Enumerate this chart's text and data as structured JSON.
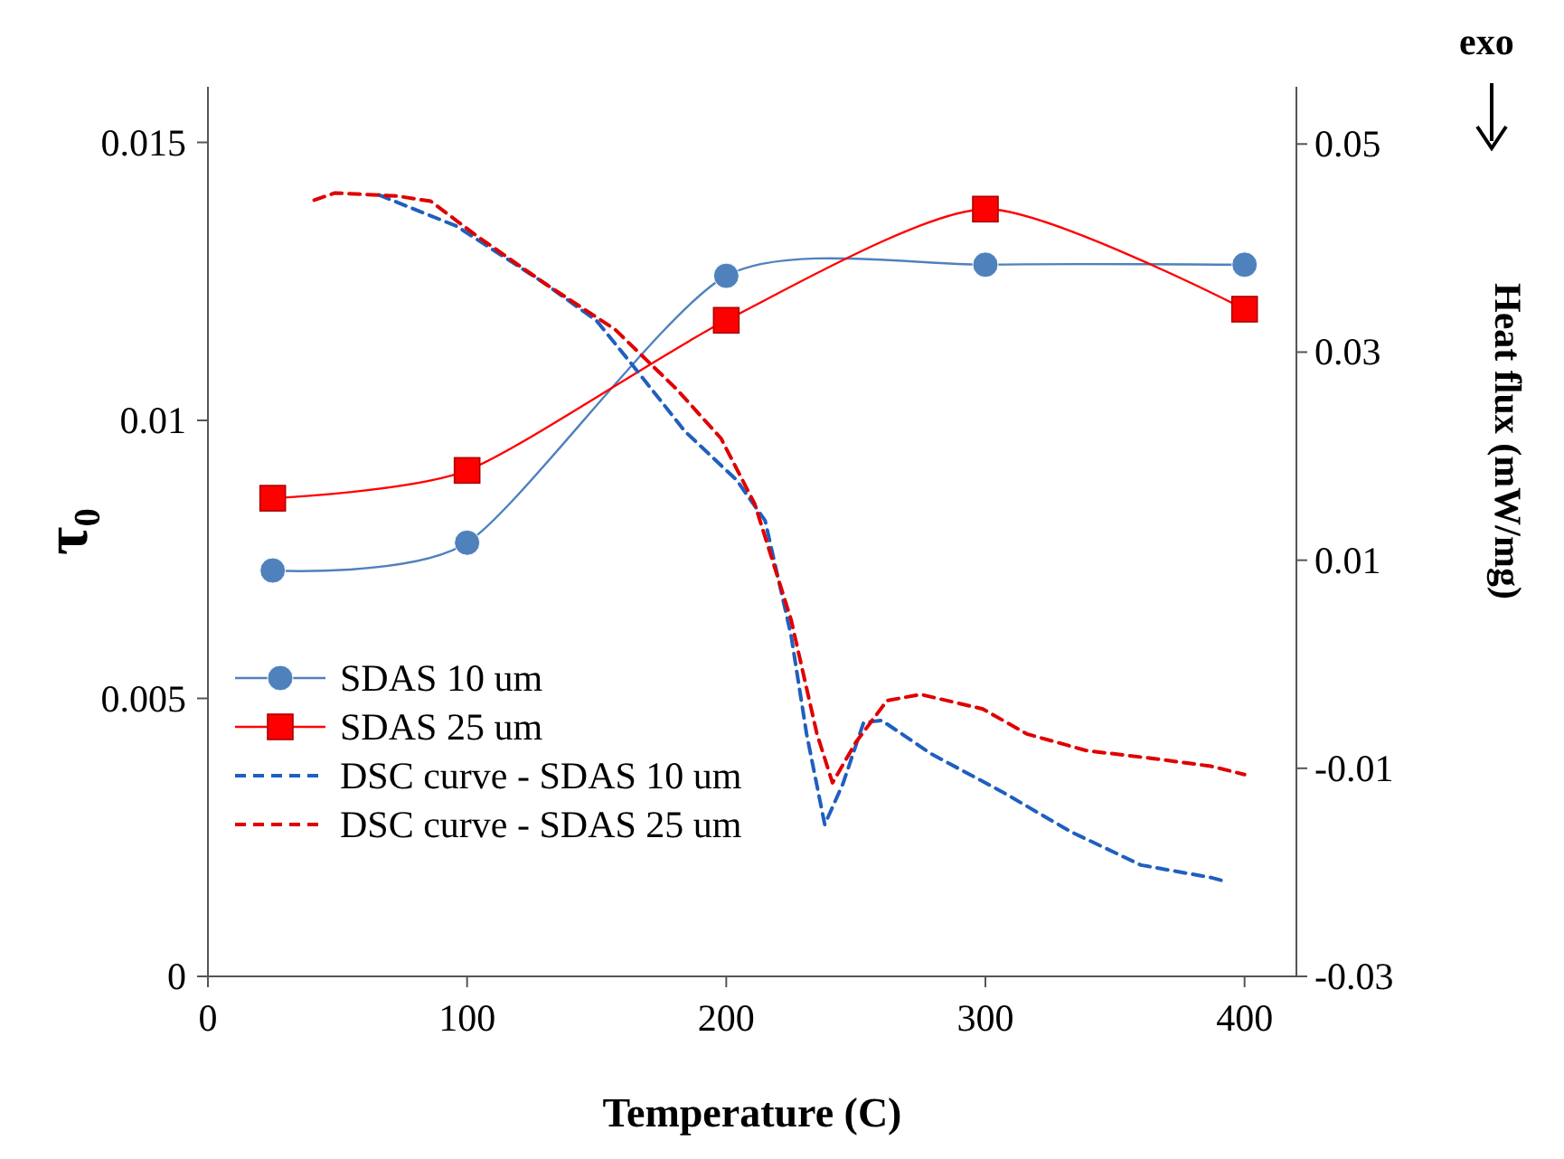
{
  "chart_data": {
    "type": "line",
    "xlabel": "Temperature (C)",
    "ylabel": "τ₀",
    "y2label": "Heat flux  (mW/mg)",
    "annotations": [
      "exo"
    ],
    "xlim": [
      0,
      420
    ],
    "xticks": [
      0,
      100,
      200,
      300,
      400
    ],
    "ylim": [
      0,
      0.016
    ],
    "yticks": [
      0,
      0.005,
      0.01,
      0.015
    ],
    "y2lim": [
      -0.03,
      0.0555
    ],
    "y2ticks": [
      -0.03,
      -0.01,
      0.01,
      0.03,
      0.05
    ],
    "grid": false,
    "legend": "bottom left",
    "series": [
      {
        "name": "SDAS 10 um",
        "color": "#4f81bd",
        "marker": "circle",
        "line_style": "solid",
        "x": [
          25,
          100,
          200,
          300,
          400
        ],
        "values": [
          0.0073,
          0.0078,
          0.0126,
          0.0128,
          0.0128
        ]
      },
      {
        "name": "SDAS 25 um",
        "color": "#ff0000",
        "marker": "square",
        "line_style": "solid",
        "x": [
          25,
          100,
          200,
          300,
          400
        ],
        "values": [
          0.0086,
          0.0091,
          0.0118,
          0.0138,
          0.012
        ]
      },
      {
        "name": "DSC curve - SDAS 10 um",
        "color": "#1f5fbf",
        "marker": "none",
        "line_style": "dashed",
        "axis": "y2",
        "x": [
          66,
          96,
          130,
          150,
          164,
          184,
          204,
          215,
          225,
          231,
          238,
          245,
          253,
          260,
          279,
          306,
          333,
          360,
          387,
          393
        ],
        "values": [
          0.0451,
          0.0421,
          0.0366,
          0.033,
          0.0287,
          0.0224,
          0.0177,
          0.0138,
          0.0028,
          -0.0067,
          -0.0154,
          -0.0115,
          -0.0056,
          -0.0054,
          -0.0086,
          -0.0122,
          -0.0161,
          -0.0193,
          -0.0205,
          -0.0209
        ]
      },
      {
        "name": "DSC curve - SDAS 25 um",
        "color": "#e00000",
        "marker": "none",
        "line_style": "dashed",
        "axis": "y2",
        "x": [
          41,
          49,
          73,
          86,
          103,
          130,
          157,
          181,
          198,
          211,
          225,
          235,
          241,
          250,
          262,
          275,
          299,
          316,
          339,
          366,
          387,
          400
        ],
        "values": [
          0.0446,
          0.0453,
          0.045,
          0.0445,
          0.0413,
          0.0366,
          0.0322,
          0.0264,
          0.0217,
          0.0154,
          0.0043,
          -0.0067,
          -0.0114,
          -0.0075,
          -0.0035,
          -0.0029,
          -0.0043,
          -0.0067,
          -0.0083,
          -0.0091,
          -0.0098,
          -0.0106
        ]
      }
    ]
  }
}
